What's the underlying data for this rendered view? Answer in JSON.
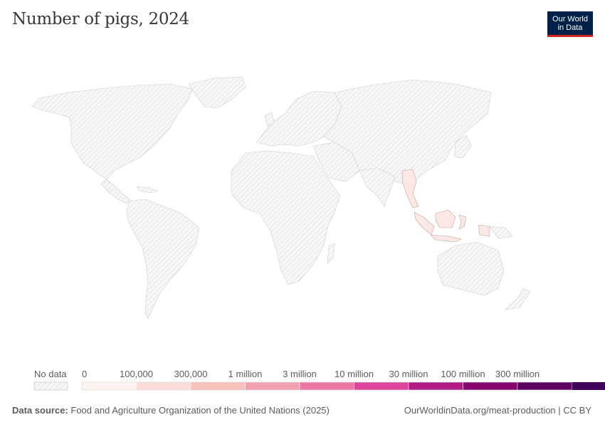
{
  "header": {
    "title": "Number of pigs, 2024",
    "logo_line1": "Our World",
    "logo_line2": "in Data"
  },
  "legend": {
    "no_data_label": "No data",
    "bins": [
      {
        "label": "0",
        "color": "#fdf3f1"
      },
      {
        "label": "100,000",
        "color": "#fbdcd8"
      },
      {
        "label": "300,000",
        "color": "#f8c1bc"
      },
      {
        "label": "1 million",
        "color": "#f3a0b0"
      },
      {
        "label": "3 million",
        "color": "#ec77a6"
      },
      {
        "label": "10 million",
        "color": "#dc4599"
      },
      {
        "label": "30 million",
        "color": "#b41b85"
      },
      {
        "label": "100 million",
        "color": "#88076f"
      },
      {
        "label": "300 million",
        "color": "#5e0062"
      },
      {
        "label": "",
        "color": "#3f0058"
      }
    ]
  },
  "map": {
    "highlighted_regions": [
      "Myanmar",
      "Indonesia"
    ],
    "highlight_color": "#fbe3e0",
    "no_data_color": "#f5f5f5"
  },
  "footer": {
    "source_label": "Data source:",
    "source_text": "Food and Agriculture Organization of the United Nations (2025)",
    "url_text": "OurWorldinData.org/meat-production | CC BY"
  }
}
